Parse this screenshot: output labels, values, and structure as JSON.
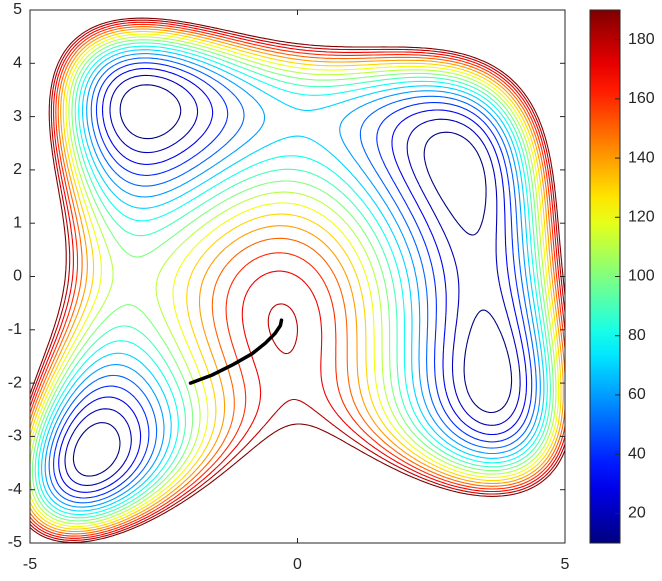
{
  "chart_data": {
    "type": "contour",
    "xlim": [
      -5,
      5
    ],
    "ylim": [
      -5,
      5
    ],
    "xticks": [
      -5,
      0,
      5
    ],
    "yticks": [
      -5,
      -4,
      -3,
      -2,
      -1,
      0,
      1,
      2,
      3,
      4,
      5
    ],
    "levels": [
      10,
      20,
      30,
      40,
      50,
      60,
      70,
      80,
      90,
      100,
      110,
      120,
      130,
      140,
      150,
      160,
      170,
      180,
      190
    ],
    "colormap": "jet",
    "clim": [
      10,
      190
    ],
    "colorbar_ticks": [
      20,
      40,
      60,
      80,
      100,
      120,
      140,
      160,
      180
    ],
    "path": {
      "color": "#000000",
      "x": [
        -2,
        -1.6,
        -1.2,
        -0.85,
        -0.6,
        -0.42,
        -0.32,
        -0.3
      ],
      "y": [
        -2,
        -1.85,
        -1.65,
        -1.45,
        -1.25,
        -1.07,
        -0.92,
        -0.82
      ]
    }
  }
}
